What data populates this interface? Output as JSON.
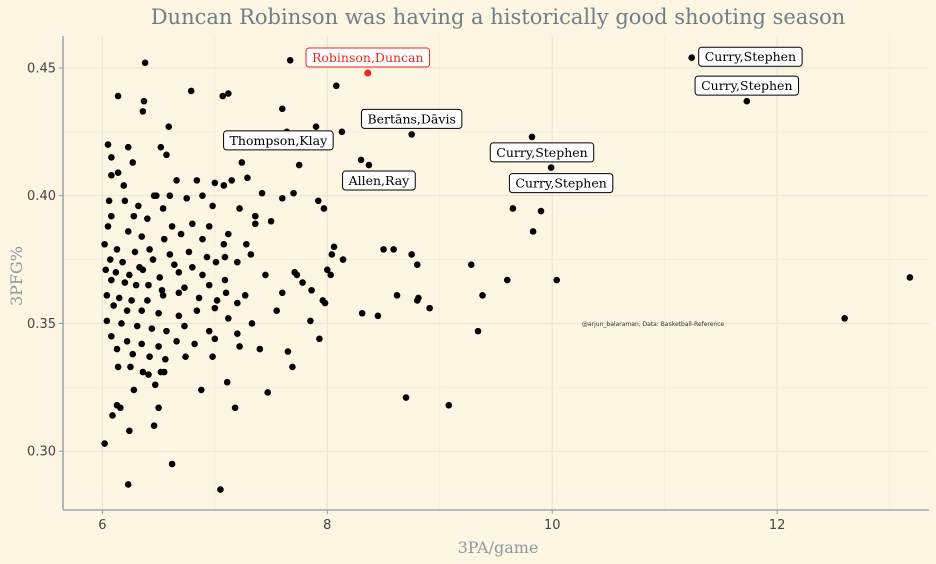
{
  "chart_data": {
    "type": "scatter",
    "title": "Duncan Robinson was having a historically good shooting season",
    "xlabel": "3PA/game",
    "ylabel": "3PFG%",
    "xlim": [
      5.65,
      13.35
    ],
    "ylim": [
      0.277,
      0.4625
    ],
    "x_ticks": [
      6,
      8,
      10,
      12
    ],
    "y_ticks": [
      0.3,
      0.35,
      0.4,
      0.45
    ],
    "x_tick_labels": [
      "6",
      "8",
      "10",
      "12"
    ],
    "y_tick_labels": [
      "0.30",
      "0.35",
      "0.40",
      "0.45"
    ],
    "grid": true,
    "caption": "@arjun_balaraman, Data: Basketball-Reference",
    "highlight_color": "#e8281c",
    "point_color": "#000000",
    "highlight": {
      "x": 8.36,
      "y": 0.448,
      "label": "Robinson,Duncan"
    },
    "labels": [
      {
        "text": "Curry,Stephen",
        "x": 11.24,
        "y": 0.454,
        "side": "right"
      },
      {
        "text": "Curry,Stephen",
        "x": 11.73,
        "y": 0.437,
        "side": "above"
      },
      {
        "text": "Bertāns,Dāvis",
        "x": 8.75,
        "y": 0.424,
        "side": "above"
      },
      {
        "text": "Thompson,Klay",
        "x": 8.07,
        "y": 0.414,
        "side": "above-left"
      },
      {
        "text": "Curry,Stephen",
        "x": 9.82,
        "y": 0.423,
        "side": "below"
      },
      {
        "text": "Allen,Ray",
        "x": 8.37,
        "y": 0.412,
        "side": "below"
      },
      {
        "text": "Curry,Stephen",
        "x": 9.99,
        "y": 0.411,
        "side": "below"
      }
    ],
    "points": [
      [
        6.38,
        0.452
      ],
      [
        7.67,
        0.453
      ],
      [
        11.24,
        0.454
      ],
      [
        8.08,
        0.443
      ],
      [
        6.79,
        0.441
      ],
      [
        6.14,
        0.439
      ],
      [
        7.07,
        0.439
      ],
      [
        7.12,
        0.44
      ],
      [
        6.37,
        0.437
      ],
      [
        7.6,
        0.434
      ],
      [
        6.36,
        0.433
      ],
      [
        11.73,
        0.437
      ],
      [
        6.59,
        0.427
      ],
      [
        7.9,
        0.427
      ],
      [
        7.64,
        0.425
      ],
      [
        7.84,
        0.424
      ],
      [
        8.13,
        0.425
      ],
      [
        7.93,
        0.423
      ],
      [
        8.75,
        0.424
      ],
      [
        9.82,
        0.423
      ],
      [
        6.05,
        0.42
      ],
      [
        6.23,
        0.419
      ],
      [
        6.52,
        0.419
      ],
      [
        6.57,
        0.416
      ],
      [
        6.08,
        0.415
      ],
      [
        7.24,
        0.413
      ],
      [
        6.27,
        0.413
      ],
      [
        8.3,
        0.414
      ],
      [
        8.37,
        0.412
      ],
      [
        7.75,
        0.412
      ],
      [
        9.99,
        0.411
      ],
      [
        6.14,
        0.409
      ],
      [
        6.08,
        0.408
      ],
      [
        6.66,
        0.406
      ],
      [
        6.84,
        0.406
      ],
      [
        7.15,
        0.406
      ],
      [
        7.29,
        0.407
      ],
      [
        7.0,
        0.405
      ],
      [
        6.19,
        0.404
      ],
      [
        7.42,
        0.401
      ],
      [
        6.48,
        0.4
      ],
      [
        6.6,
        0.4
      ],
      [
        6.89,
        0.4
      ],
      [
        7.08,
        0.404
      ],
      [
        7.7,
        0.401
      ],
      [
        6.06,
        0.398
      ],
      [
        6.2,
        0.398
      ],
      [
        6.32,
        0.396
      ],
      [
        6.46,
        0.4
      ],
      [
        6.54,
        0.395
      ],
      [
        6.75,
        0.399
      ],
      [
        6.98,
        0.396
      ],
      [
        7.22,
        0.395
      ],
      [
        7.36,
        0.392
      ],
      [
        7.6,
        0.399
      ],
      [
        7.92,
        0.398
      ],
      [
        7.97,
        0.395
      ],
      [
        9.65,
        0.395
      ],
      [
        9.9,
        0.394
      ],
      [
        6.08,
        0.392
      ],
      [
        6.28,
        0.392
      ],
      [
        6.4,
        0.391
      ],
      [
        6.62,
        0.388
      ],
      [
        6.8,
        0.389
      ],
      [
        6.95,
        0.388
      ],
      [
        7.12,
        0.385
      ],
      [
        7.36,
        0.389
      ],
      [
        7.5,
        0.39
      ],
      [
        6.05,
        0.388
      ],
      [
        6.23,
        0.386
      ],
      [
        6.35,
        0.384
      ],
      [
        6.55,
        0.383
      ],
      [
        6.7,
        0.385
      ],
      [
        6.89,
        0.383
      ],
      [
        7.08,
        0.381
      ],
      [
        7.28,
        0.381
      ],
      [
        9.83,
        0.386
      ],
      [
        6.02,
        0.381
      ],
      [
        6.13,
        0.379
      ],
      [
        6.29,
        0.378
      ],
      [
        6.42,
        0.379
      ],
      [
        6.6,
        0.377
      ],
      [
        6.77,
        0.378
      ],
      [
        6.93,
        0.376
      ],
      [
        7.09,
        0.376
      ],
      [
        7.32,
        0.377
      ],
      [
        8.06,
        0.38
      ],
      [
        8.5,
        0.379
      ],
      [
        8.59,
        0.379
      ],
      [
        8.75,
        0.377
      ],
      [
        6.07,
        0.375
      ],
      [
        6.18,
        0.374
      ],
      [
        6.33,
        0.372
      ],
      [
        6.45,
        0.375
      ],
      [
        6.64,
        0.373
      ],
      [
        6.8,
        0.372
      ],
      [
        7.01,
        0.374
      ],
      [
        7.2,
        0.374
      ],
      [
        8.04,
        0.377
      ],
      [
        8.14,
        0.375
      ],
      [
        8.8,
        0.373
      ],
      [
        9.28,
        0.373
      ],
      [
        6.03,
        0.371
      ],
      [
        6.12,
        0.37
      ],
      [
        6.24,
        0.369
      ],
      [
        6.36,
        0.371
      ],
      [
        6.51,
        0.368
      ],
      [
        6.68,
        0.37
      ],
      [
        6.89,
        0.369
      ],
      [
        7.09,
        0.367
      ],
      [
        7.45,
        0.369
      ],
      [
        7.71,
        0.37
      ],
      [
        7.73,
        0.369
      ],
      [
        8.0,
        0.371
      ],
      [
        8.03,
        0.369
      ],
      [
        9.6,
        0.367
      ],
      [
        10.04,
        0.367
      ],
      [
        13.18,
        0.368
      ],
      [
        6.08,
        0.367
      ],
      [
        6.2,
        0.366
      ],
      [
        6.3,
        0.365
      ],
      [
        6.41,
        0.365
      ],
      [
        6.53,
        0.363
      ],
      [
        6.73,
        0.364
      ],
      [
        6.95,
        0.365
      ],
      [
        7.1,
        0.362
      ],
      [
        7.27,
        0.361
      ],
      [
        7.78,
        0.366
      ],
      [
        7.86,
        0.363
      ],
      [
        6.04,
        0.361
      ],
      [
        6.15,
        0.36
      ],
      [
        6.26,
        0.359
      ],
      [
        6.4,
        0.359
      ],
      [
        6.54,
        0.361
      ],
      [
        6.68,
        0.362
      ],
      [
        6.86,
        0.36
      ],
      [
        7.02,
        0.359
      ],
      [
        7.2,
        0.358
      ],
      [
        7.6,
        0.362
      ],
      [
        7.98,
        0.358
      ],
      [
        8.62,
        0.361
      ],
      [
        8.81,
        0.36
      ],
      [
        9.38,
        0.361
      ],
      [
        6.1,
        0.357
      ],
      [
        6.22,
        0.355
      ],
      [
        6.35,
        0.355
      ],
      [
        6.5,
        0.354
      ],
      [
        6.68,
        0.353
      ],
      [
        6.84,
        0.355
      ],
      [
        7.0,
        0.356
      ],
      [
        7.12,
        0.352
      ],
      [
        7.33,
        0.35
      ],
      [
        7.55,
        0.355
      ],
      [
        7.96,
        0.359
      ],
      [
        8.31,
        0.354
      ],
      [
        8.45,
        0.353
      ],
      [
        8.8,
        0.359
      ],
      [
        8.91,
        0.356
      ],
      [
        12.6,
        0.352
      ],
      [
        6.04,
        0.351
      ],
      [
        6.17,
        0.35
      ],
      [
        6.31,
        0.349
      ],
      [
        6.44,
        0.348
      ],
      [
        6.57,
        0.347
      ],
      [
        6.73,
        0.349
      ],
      [
        6.95,
        0.347
      ],
      [
        7.2,
        0.346
      ],
      [
        7.85,
        0.351
      ],
      [
        9.34,
        0.347
      ],
      [
        6.08,
        0.345
      ],
      [
        6.22,
        0.343
      ],
      [
        6.35,
        0.342
      ],
      [
        6.5,
        0.341
      ],
      [
        6.66,
        0.343
      ],
      [
        6.82,
        0.342
      ],
      [
        7.0,
        0.344
      ],
      [
        7.22,
        0.341
      ],
      [
        7.4,
        0.34
      ],
      [
        7.93,
        0.344
      ],
      [
        6.13,
        0.34
      ],
      [
        6.27,
        0.338
      ],
      [
        6.42,
        0.337
      ],
      [
        6.56,
        0.336
      ],
      [
        6.74,
        0.337
      ],
      [
        6.98,
        0.337
      ],
      [
        7.65,
        0.339
      ],
      [
        6.14,
        0.333
      ],
      [
        6.25,
        0.333
      ],
      [
        6.36,
        0.331
      ],
      [
        6.52,
        0.331
      ],
      [
        6.55,
        0.331
      ],
      [
        6.88,
        0.324
      ],
      [
        7.11,
        0.327
      ],
      [
        7.69,
        0.333
      ],
      [
        6.41,
        0.33
      ],
      [
        6.47,
        0.326
      ],
      [
        6.28,
        0.324
      ],
      [
        7.47,
        0.323
      ],
      [
        8.7,
        0.321
      ],
      [
        6.13,
        0.318
      ],
      [
        6.16,
        0.317
      ],
      [
        6.5,
        0.317
      ],
      [
        7.18,
        0.317
      ],
      [
        9.08,
        0.318
      ],
      [
        6.09,
        0.314
      ],
      [
        6.46,
        0.31
      ],
      [
        6.24,
        0.308
      ],
      [
        6.02,
        0.303
      ],
      [
        6.62,
        0.295
      ],
      [
        6.23,
        0.287
      ],
      [
        7.05,
        0.285
      ]
    ]
  }
}
